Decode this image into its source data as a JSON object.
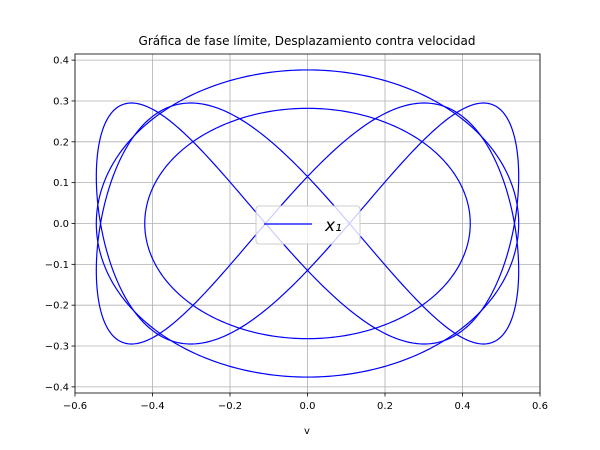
{
  "chart_data": {
    "type": "line",
    "title": "Gráfica de fase límite, Desplazamiento contra velocidad",
    "xlabel": "v",
    "ylabel": "",
    "xlim": [
      -0.6,
      0.6
    ],
    "ylim": [
      -0.415,
      0.415
    ],
    "xticks": [
      -0.6,
      -0.4,
      -0.2,
      0.0,
      0.2,
      0.4,
      0.6
    ],
    "xtick_labels": [
      "−0.6",
      "−0.4",
      "−0.2",
      "0.0",
      "0.2",
      "0.4",
      "0.6"
    ],
    "yticks": [
      -0.4,
      -0.3,
      -0.2,
      -0.1,
      0.0,
      0.1,
      0.2,
      0.3,
      0.4
    ],
    "ytick_labels": [
      "−0.4",
      "−0.3",
      "−0.2",
      "−0.1",
      "0.0",
      "0.1",
      "0.2",
      "0.3",
      "0.4"
    ],
    "grid": true,
    "legend_position": "center",
    "series": [
      {
        "name": "x₁",
        "color": "#0000ff",
        "curves": [
          {
            "shape": "ellipse",
            "cx": 0.0,
            "cy": 0.0,
            "rx": 0.545,
            "ry": 0.376
          },
          {
            "shape": "lissajous",
            "ax": 0.545,
            "ay": 0.295,
            "phase": 0.4
          },
          {
            "shape": "lissajous",
            "ax": 0.545,
            "ay": 0.295,
            "phase": -0.4
          },
          {
            "shape": "ellipse",
            "cx": 0.0,
            "cy": 0.0,
            "rx": 0.42,
            "ry": 0.282
          }
        ]
      }
    ]
  }
}
